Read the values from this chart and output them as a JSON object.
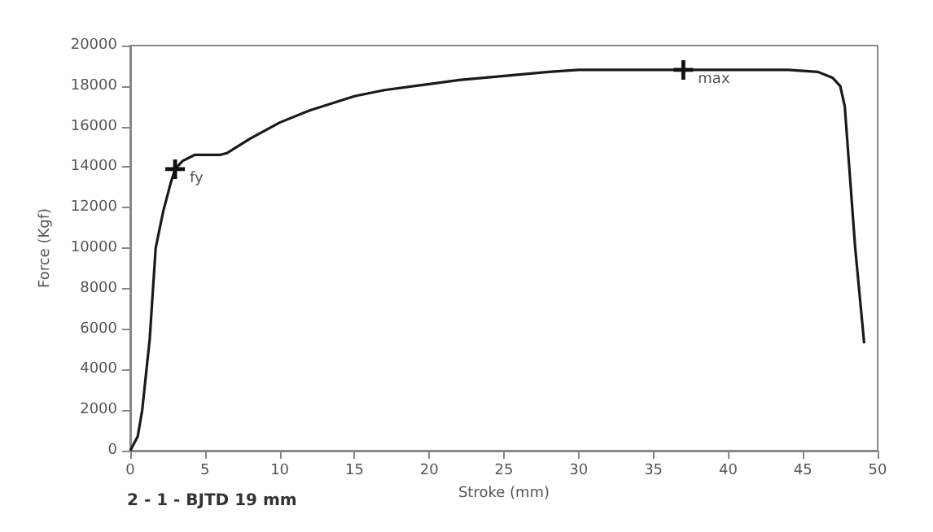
{
  "chart_data": {
    "type": "line",
    "xlabel": "Stroke (mm)",
    "ylabel": "Force (Kgf)",
    "xlim": [
      0,
      50
    ],
    "xticks": [
      0,
      5,
      10,
      15,
      20,
      25,
      30,
      35,
      40,
      45,
      50
    ],
    "ylim": [
      0,
      20000
    ],
    "yticks": [
      0,
      2000,
      4000,
      6000,
      8000,
      10000,
      12000,
      14000,
      16000,
      18000,
      20000
    ],
    "grid": false,
    "marker": "none",
    "line_style": "solid",
    "series": [
      {
        "color": "#1a1a1a",
        "x": [
          0,
          0.5,
          0.8,
          1.3,
          1.7,
          2.2,
          2.7,
          3,
          3.5,
          4.3,
          6,
          6.5,
          8,
          10,
          12,
          15,
          17,
          20,
          22,
          25,
          28,
          30,
          33,
          37,
          40,
          44,
          46,
          47,
          47.5,
          47.8,
          48,
          48.5,
          49.1
        ],
        "values": [
          0,
          700,
          2000,
          5500,
          10000,
          11800,
          13200,
          13900,
          14300,
          14600,
          14600,
          14700,
          15400,
          16200,
          16800,
          17500,
          17800,
          18100,
          18300,
          18500,
          18700,
          18800,
          18800,
          18800,
          18800,
          18800,
          18700,
          18400,
          18000,
          17000,
          15000,
          10000,
          5300
        ]
      }
    ],
    "annotations": [
      {
        "text": "fy",
        "x": 3,
        "y": 13900
      },
      {
        "text": "max",
        "x": 37,
        "y": 18800
      },
      "2 - 1 - BJTD 19 mm"
    ]
  }
}
